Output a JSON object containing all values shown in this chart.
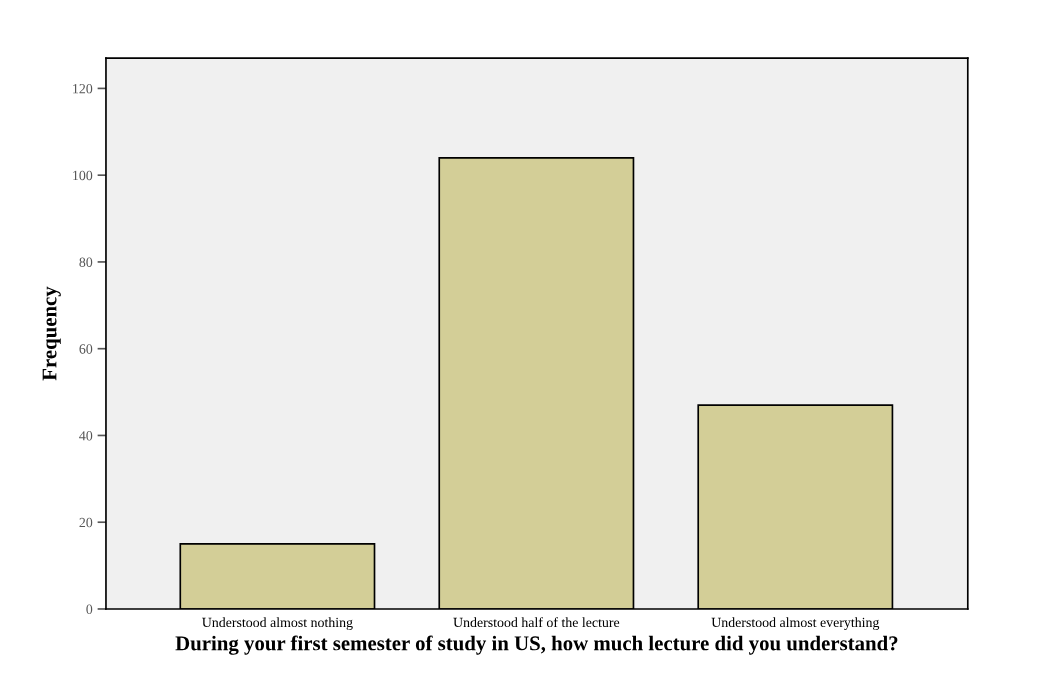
{
  "chart_data": {
    "type": "bar",
    "xlabel": "During your first semester of study in US, how much lecture did you understand?",
    "ylabel": "Frequency",
    "categories": [
      "Understood almost nothing",
      "Understood half of the lecture",
      "Understood almost everything"
    ],
    "values": [
      15,
      104,
      47
    ],
    "color": "#d3ce97",
    "ylim": [
      0,
      127
    ],
    "yticks": [
      0,
      20,
      40,
      60,
      80,
      100,
      120
    ],
    "grid": false
  }
}
